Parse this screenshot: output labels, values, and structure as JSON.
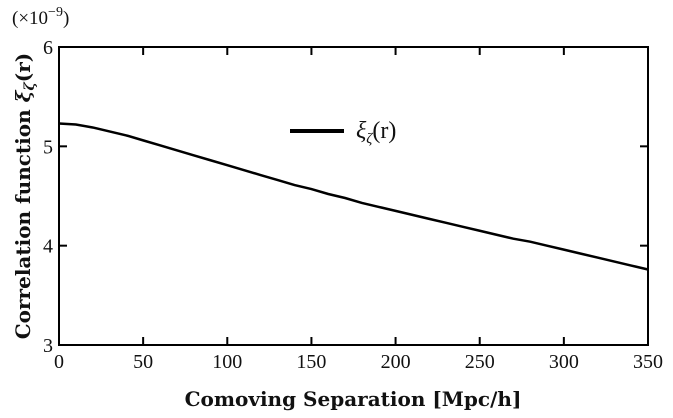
{
  "chart_data": {
    "type": "line",
    "title": "",
    "xlabel": "Comoving Separation [Mpc/h]",
    "ylabel_main": "Correlation function",
    "ylabel_symbol": "ξ",
    "ylabel_subscript": "ζ",
    "ylabel_suffix": "(r)",
    "y_multiplier": {
      "prefix": "(×10",
      "exponent": "−9",
      "suffix": ")"
    },
    "xlim": [
      0,
      350
    ],
    "ylim": [
      3,
      6
    ],
    "xticks": [
      0,
      50,
      100,
      150,
      200,
      250,
      300,
      350
    ],
    "yticks": [
      3,
      4,
      5,
      6
    ],
    "grid": false,
    "legend_position": "top-center",
    "series": [
      {
        "name": "ξζ(r)",
        "legend_symbol": "ξ",
        "legend_subscript": "ζ",
        "legend_suffix": "(r)",
        "color": "#000000",
        "x": [
          0,
          10,
          20,
          30,
          40,
          50,
          60,
          70,
          80,
          90,
          100,
          110,
          120,
          130,
          140,
          150,
          160,
          170,
          180,
          190,
          200,
          210,
          220,
          230,
          240,
          250,
          260,
          270,
          280,
          290,
          300,
          310,
          320,
          330,
          340,
          350
        ],
        "y": [
          5.23,
          5.22,
          5.19,
          5.15,
          5.11,
          5.06,
          5.01,
          4.96,
          4.91,
          4.86,
          4.81,
          4.76,
          4.71,
          4.66,
          4.61,
          4.57,
          4.52,
          4.48,
          4.43,
          4.39,
          4.35,
          4.31,
          4.27,
          4.23,
          4.19,
          4.15,
          4.11,
          4.07,
          4.04,
          4.0,
          3.96,
          3.92,
          3.88,
          3.84,
          3.8,
          3.76
        ]
      }
    ]
  }
}
